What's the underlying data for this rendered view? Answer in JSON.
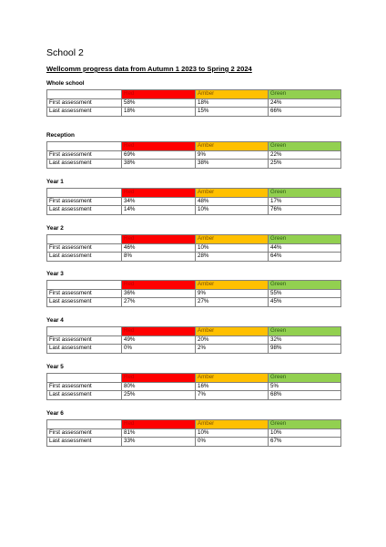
{
  "title": "School 2",
  "subtitle": "Wellcomm progress data from Autumn 1 2023 to Spring 2 2024",
  "columns": [
    "Red",
    "Amber",
    "Green"
  ],
  "colors": {
    "red": "#ff0000",
    "amber": "#ffc000",
    "green": "#92d050"
  },
  "groups": [
    {
      "name": "Whole school",
      "rows": [
        {
          "label": "First assessment",
          "values": [
            "58%",
            "18%",
            "24%"
          ]
        },
        {
          "label": "Last assessment",
          "values": [
            "18%",
            "15%",
            "66%"
          ]
        }
      ]
    },
    {
      "name": "Reception",
      "rows": [
        {
          "label": "First assessment",
          "values": [
            "69%",
            "9%",
            "22%"
          ]
        },
        {
          "label": "Last assessment",
          "values": [
            "38%",
            "38%",
            "25%"
          ]
        }
      ]
    },
    {
      "name": "Year 1",
      "rows": [
        {
          "label": "First assessment",
          "values": [
            "34%",
            "48%",
            "17%"
          ]
        },
        {
          "label": "Last assessment",
          "values": [
            "14%",
            "10%",
            "76%"
          ]
        }
      ]
    },
    {
      "name": "Year 2",
      "rows": [
        {
          "label": "First assessment",
          "values": [
            "46%",
            "10%",
            "44%"
          ]
        },
        {
          "label": "Last assessment",
          "values": [
            "8%",
            "28%",
            "64%"
          ]
        }
      ]
    },
    {
      "name": "Year 3",
      "rows": [
        {
          "label": "First assessment",
          "values": [
            "36%",
            "9%",
            "55%"
          ]
        },
        {
          "label": "Last assessment",
          "values": [
            "27%",
            "27%",
            "45%"
          ]
        }
      ]
    },
    {
      "name": "Year 4",
      "rows": [
        {
          "label": "First assessment",
          "values": [
            "49%",
            "20%",
            "32%"
          ]
        },
        {
          "label": "Last assessment",
          "values": [
            "0%",
            "2%",
            "98%"
          ]
        }
      ]
    },
    {
      "name": "Year 5",
      "rows": [
        {
          "label": "First assessment",
          "values": [
            "80%",
            "16%",
            "5%"
          ]
        },
        {
          "label": "Last assessment",
          "values": [
            "25%",
            "7%",
            "68%"
          ]
        }
      ]
    },
    {
      "name": "Year 6",
      "rows": [
        {
          "label": "First assessment",
          "values": [
            "81%",
            "10%",
            "10%"
          ]
        },
        {
          "label": "Last assessment",
          "values": [
            "33%",
            "0%",
            "67%"
          ]
        }
      ]
    }
  ]
}
